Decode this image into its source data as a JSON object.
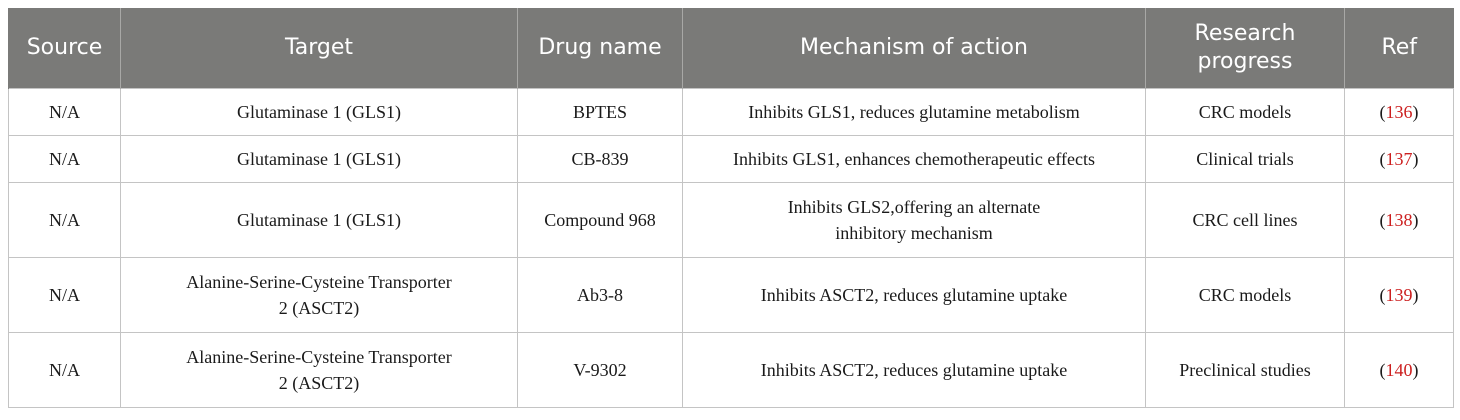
{
  "table": {
    "headers": {
      "source": "Source",
      "target": "Target",
      "drug": "Drug name",
      "mechanism": "Mechanism of action",
      "progress_line1": "Research",
      "progress_line2": "progress",
      "ref": "Ref"
    },
    "colors": {
      "header_bg": "#7a7a78",
      "header_text": "#ffffff",
      "ref_link": "#cc1f1f",
      "grid": "#c4c4c4"
    },
    "rows": [
      {
        "source": "N/A",
        "target": [
          "Glutaminase 1 (GLS1)"
        ],
        "drug": "BPTES",
        "mechanism": [
          "Inhibits GLS1, reduces glutamine metabolism"
        ],
        "progress": "CRC models",
        "ref": "136"
      },
      {
        "source": "N/A",
        "target": [
          "Glutaminase 1 (GLS1)"
        ],
        "drug": "CB-839",
        "mechanism": [
          "Inhibits GLS1, enhances chemotherapeutic effects"
        ],
        "progress": "Clinical trials",
        "ref": "137"
      },
      {
        "source": "N/A",
        "target": [
          "Glutaminase 1 (GLS1)"
        ],
        "drug": "Compound 968",
        "mechanism": [
          "Inhibits GLS2,offering an alternate",
          "inhibitory mechanism"
        ],
        "progress": "CRC cell lines",
        "ref": "138"
      },
      {
        "source": "N/A",
        "target": [
          "Alanine-Serine-Cysteine Transporter",
          "2 (ASCT2)"
        ],
        "drug": "Ab3-8",
        "mechanism": [
          "Inhibits ASCT2, reduces glutamine uptake"
        ],
        "progress": "CRC models",
        "ref": "139"
      },
      {
        "source": "N/A",
        "target": [
          "Alanine-Serine-Cysteine Transporter",
          "2 (ASCT2)"
        ],
        "drug": "V-9302",
        "mechanism": [
          "Inhibits ASCT2, reduces glutamine uptake"
        ],
        "progress": "Preclinical studies",
        "ref": "140"
      }
    ]
  }
}
